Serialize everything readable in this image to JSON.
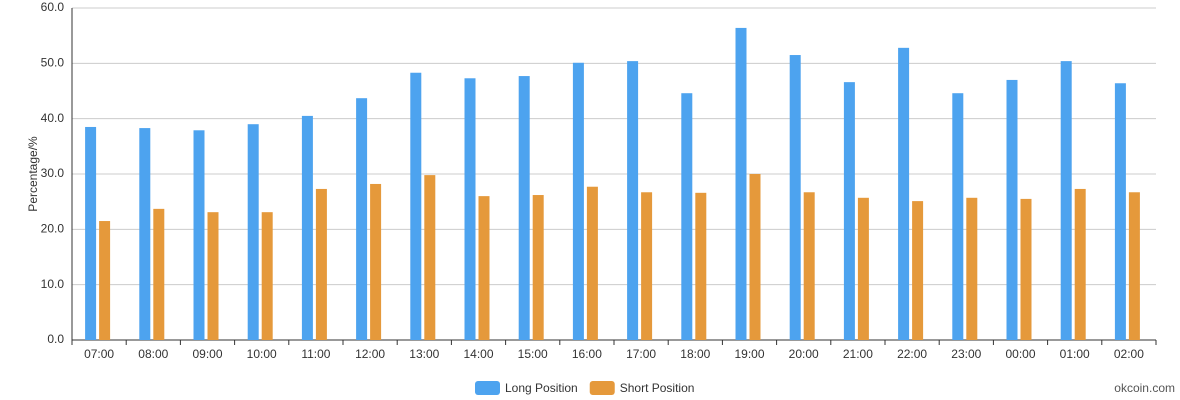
{
  "chart_data": {
    "type": "bar",
    "ylabel": "Percentage/%",
    "watermark": "okcoin.com",
    "categories": [
      "07:00",
      "08:00",
      "09:00",
      "10:00",
      "11:00",
      "12:00",
      "13:00",
      "14:00",
      "15:00",
      "16:00",
      "17:00",
      "18:00",
      "19:00",
      "20:00",
      "21:00",
      "22:00",
      "23:00",
      "00:00",
      "01:00",
      "02:00"
    ],
    "series": [
      {
        "name": "Long Position",
        "color": "#4da3ef",
        "values": [
          38.5,
          38.3,
          37.9,
          39.0,
          40.5,
          43.7,
          48.3,
          47.3,
          47.7,
          50.1,
          50.4,
          44.6,
          56.4,
          51.5,
          46.6,
          52.8,
          44.6,
          47.0,
          50.4,
          46.4
        ]
      },
      {
        "name": "Short Position",
        "color": "#e5993b",
        "values": [
          21.5,
          23.7,
          23.1,
          23.1,
          27.3,
          28.2,
          29.8,
          26.0,
          26.2,
          27.7,
          26.7,
          26.6,
          30.0,
          26.7,
          25.7,
          25.1,
          25.7,
          25.5,
          27.3,
          26.7
        ]
      }
    ],
    "ylim": [
      0,
      60
    ],
    "yticks": [
      {
        "value": 0,
        "label": "0.0"
      },
      {
        "value": 10,
        "label": "10.0"
      },
      {
        "value": 20,
        "label": "20.0"
      },
      {
        "value": 30,
        "label": "30.0"
      },
      {
        "value": 40,
        "label": "40.0"
      },
      {
        "value": 50,
        "label": "50.0"
      },
      {
        "value": 60,
        "label": "60.0"
      }
    ],
    "grid": true,
    "legend": "bottom"
  }
}
